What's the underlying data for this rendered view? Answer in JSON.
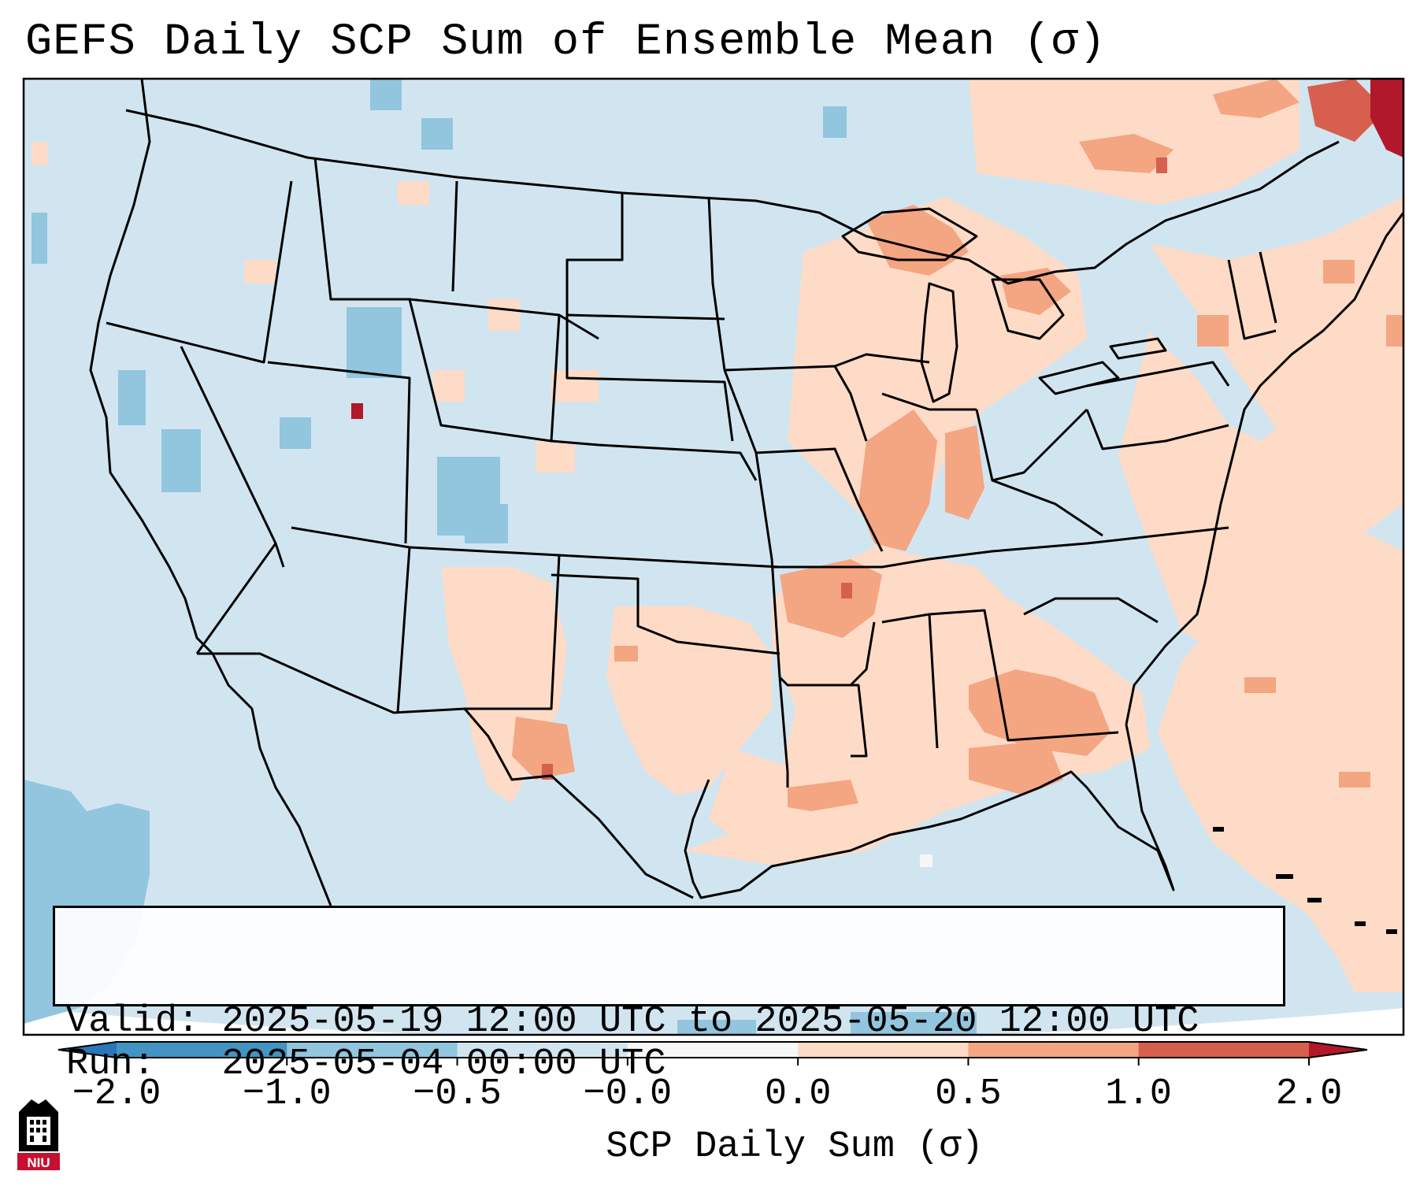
{
  "title": "GEFS Daily SCP Sum of Ensemble Mean (σ)",
  "info": {
    "valid_label": "Valid:",
    "valid_value": "2025-05-19 12:00 UTC to 2025-05-20 12:00 UTC",
    "run_label": "Run:",
    "run_value": "2025-05-04 00:00 UTC"
  },
  "colorbar": {
    "label": "SCP Daily Sum (σ)",
    "ticks": [
      "−2.0",
      "−1.0",
      "−0.5",
      "−0.0",
      "0.0",
      "0.5",
      "1.0",
      "2.0"
    ],
    "colors": [
      "#2a76b8",
      "#4393c3",
      "#92c5de",
      "#d1e5f0",
      "#f7f7f7",
      "#fddbc7",
      "#f4a582",
      "#d6604d",
      "#b2182b"
    ],
    "extend": "both"
  },
  "map": {
    "projection": "Lambert conformal, CONUS",
    "background_class": "#d1e5f0",
    "bins": [
      "<-2",
      "-2 to -1",
      "-1 to -0.5",
      "-0.5 to 0",
      "0",
      "0 to 0.5",
      "0.5 to 1",
      "1 to 2",
      ">2"
    ]
  },
  "logo": {
    "text": "NIU"
  }
}
